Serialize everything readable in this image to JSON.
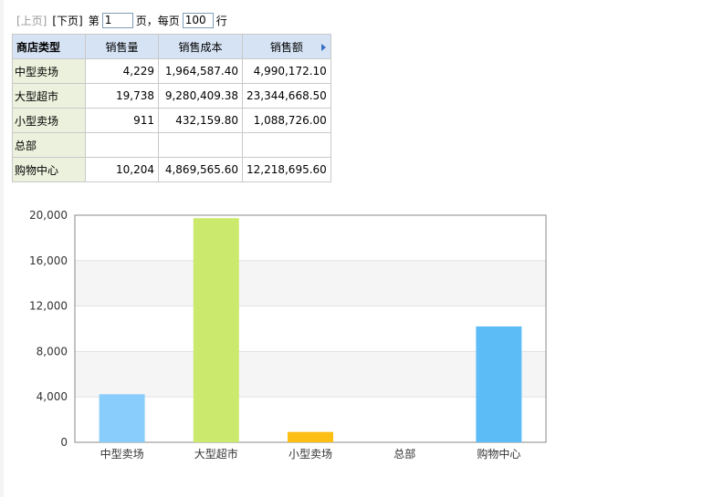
{
  "pager": {
    "prev_label": "[上页]",
    "next_label": "[下页]",
    "page_prefix": "第",
    "page_value": "1",
    "page_suffix": "页，每页",
    "page_size_value": "100",
    "rows_suffix": "行"
  },
  "table": {
    "headers": [
      "商店类型",
      "销售量",
      "销售成本",
      "销售额"
    ],
    "rows": [
      {
        "type": "中型卖场",
        "qty": "4,229",
        "cost": "1,964,587.40",
        "sales": "4,990,172.10"
      },
      {
        "type": "大型超市",
        "qty": "19,738",
        "cost": "9,280,409.38",
        "sales": "23,344,668.50"
      },
      {
        "type": "小型卖场",
        "qty": "911",
        "cost": "432,159.80",
        "sales": "1,088,726.00"
      },
      {
        "type": "总部",
        "qty": "",
        "cost": "",
        "sales": ""
      },
      {
        "type": "购物中心",
        "qty": "10,204",
        "cost": "4,869,565.60",
        "sales": "12,218,695.60"
      }
    ]
  },
  "colors": {
    "header_bg": "#d6e3f5",
    "label_bg": "#ebf1dc",
    "bar_colors": [
      "#88cdfb",
      "#cbe96c",
      "#fdbf14",
      "#888888",
      "#5bbcf6"
    ]
  },
  "chart_data": {
    "type": "bar",
    "categories": [
      "中型卖场",
      "大型超市",
      "小型卖场",
      "总部",
      "购物中心"
    ],
    "values": [
      4229,
      19738,
      911,
      0,
      10204
    ],
    "ylim": [
      0,
      20000
    ],
    "yticks": [
      "0",
      "4,000",
      "8,000",
      "12,000",
      "16,000",
      "20,000"
    ],
    "title": "",
    "xlabel": "",
    "ylabel": "",
    "grid": true,
    "legend": "none"
  }
}
